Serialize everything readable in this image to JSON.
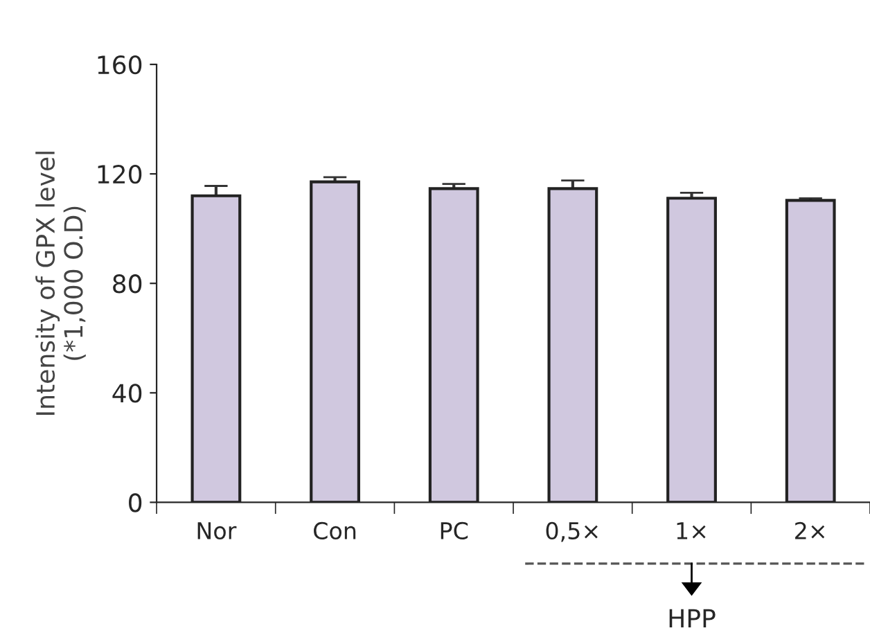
{
  "chart_data": {
    "type": "bar",
    "ylabel": "Intensity of GPX level\n(*1,000 O.D)",
    "categories": [
      "Nor",
      "Con",
      "PC",
      "0,5×",
      "1×",
      "2×"
    ],
    "values": [
      112.0,
      117.1,
      114.6,
      114.6,
      111.1,
      110.3
    ],
    "errors": [
      3.6,
      1.7,
      1.7,
      3.0,
      2.0,
      0.8
    ],
    "color": "#d0c8df",
    "ylim": [
      0,
      160
    ],
    "yticks": [
      0,
      40,
      80,
      120,
      160
    ],
    "grid": false,
    "annotations": [
      "HPP"
    ]
  }
}
